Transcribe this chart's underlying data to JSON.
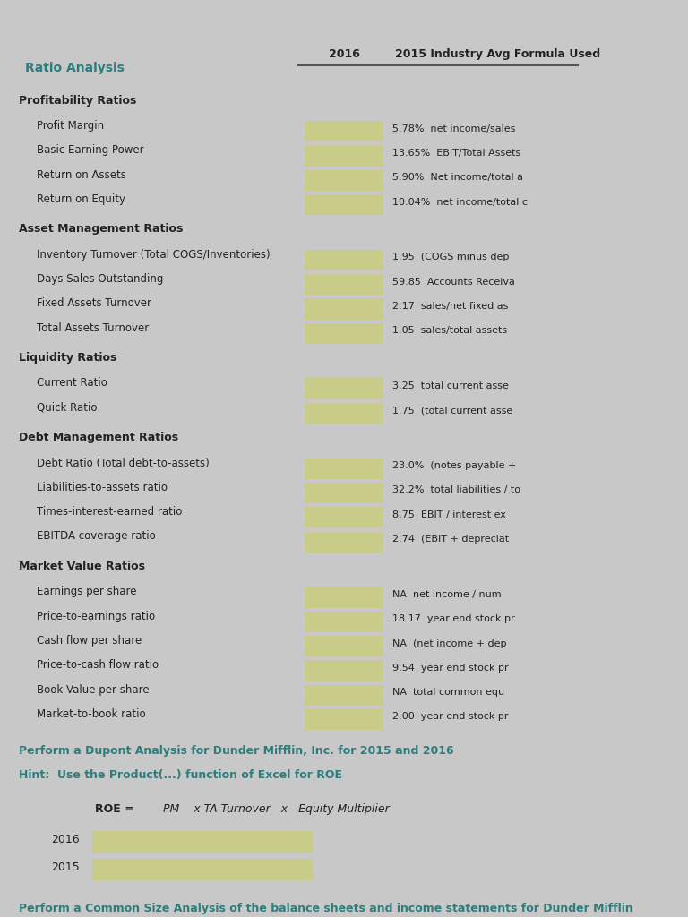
{
  "bg_color": "#c8c8c8",
  "content_bg": "#d4d4d4",
  "cell_color": "#c8cc88",
  "teal_color": "#2e7d7d",
  "dark_text": "#222222",
  "header_line_color": "#555555",
  "title": "Ratio Analysis",
  "col2_header": "2016",
  "col3_header": "2015 Industry Avg Formula Used",
  "sections": [
    {
      "section_header": "Profitability Ratios",
      "rows": [
        {
          "label": "Profit Margin",
          "industry": "5.78%  net income/sales"
        },
        {
          "label": "Basic Earning Power",
          "industry": "13.65%  EBIT/Total Assets"
        },
        {
          "label": "Return on Assets",
          "industry": "5.90%  Net income/total a"
        },
        {
          "label": "Return on Equity",
          "industry": "10.04%  net income/total c"
        }
      ]
    },
    {
      "section_header": "Asset Management Ratios",
      "rows": [
        {
          "label": "Inventory Turnover (Total COGS/Inventories)",
          "industry": "1.95  (COGS minus dep"
        },
        {
          "label": "Days Sales Outstanding",
          "industry": "59.85  Accounts Receiva"
        },
        {
          "label": "Fixed Assets Turnover",
          "industry": "2.17  sales/net fixed as"
        },
        {
          "label": "Total Assets Turnover",
          "industry": "1.05  sales/total assets"
        }
      ]
    },
    {
      "section_header": "Liquidity Ratios",
      "rows": [
        {
          "label": "Current Ratio",
          "industry": "3.25  total current asse"
        },
        {
          "label": "Quick Ratio",
          "industry": "1.75  (total current asse"
        }
      ]
    },
    {
      "section_header": "Debt Management Ratios",
      "rows": [
        {
          "label": "Debt Ratio (Total debt-to-assets)",
          "industry": "23.0%  (notes payable +"
        },
        {
          "label": "Liabilities-to-assets ratio",
          "industry": "32.2%  total liabilities / to"
        },
        {
          "label": "Times-interest-earned ratio",
          "industry": "8.75  EBIT / interest ex"
        },
        {
          "label": "EBITDA coverage ratio",
          "industry": "2.74  (EBIT + depreciat"
        }
      ]
    },
    {
      "section_header": "Market Value Ratios",
      "rows": [
        {
          "label": "Earnings per share",
          "industry": "NA  net income / num"
        },
        {
          "label": "Price-to-earnings ratio",
          "industry": "18.17  year end stock pr"
        },
        {
          "label": "Cash flow per share",
          "industry": "NA  (net income + dep"
        },
        {
          "label": "Price-to-cash flow ratio",
          "industry": "9.54  year end stock pr"
        },
        {
          "label": "Book Value per share",
          "industry": "NA  total common equ"
        },
        {
          "label": "Market-to-book ratio",
          "industry": "2.00  year end stock pr"
        }
      ]
    }
  ],
  "dupont_text1": "Perform a Dupont Analysis for Dunder Mifflin, Inc. for 2015 and 2016",
  "dupont_text2": "Hint:  Use the Product(...) function of Excel for ROE",
  "roe_label": "ROE =",
  "roe_formula": "PM    x TA Turnover   x   Equity Multiplier",
  "dupont_rows": [
    "2016",
    "2015"
  ],
  "common_size_text": "Perform a Common Size Analysis of the balance sheets and income statements for Dunder Mifflin"
}
